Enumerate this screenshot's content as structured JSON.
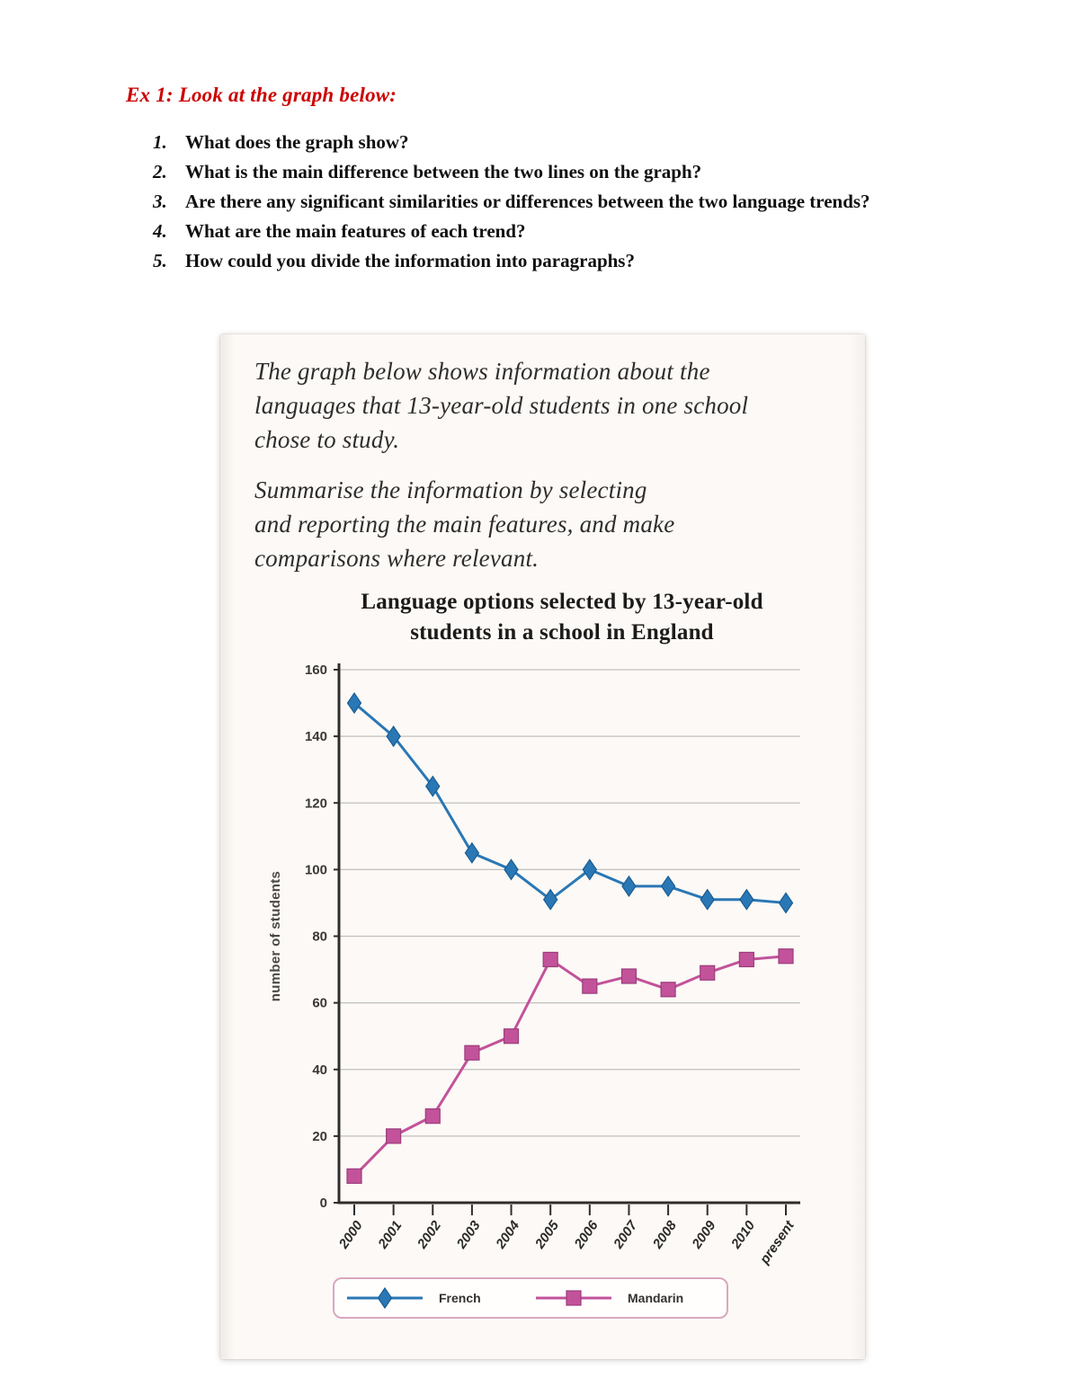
{
  "page": {
    "heading": "Ex 1: Look at the graph below:",
    "questions": [
      {
        "num": "1.",
        "text": "What does the graph show?"
      },
      {
        "num": "2.",
        "text": "What is the main difference between the two lines on the graph?"
      },
      {
        "num": "3.",
        "text": "Are there any significant similarities or differences between the two language trends?"
      },
      {
        "num": "4.",
        "text": "What are the main features of each trend?"
      },
      {
        "num": "5.",
        "text": "How could you divide the information into paragraphs?"
      }
    ]
  },
  "card": {
    "prompt1_lines": [
      "The graph below shows information about the",
      "languages that 13-year-old students in one school",
      "chose to study."
    ],
    "prompt2_lines": [
      "Summarise the information by selecting",
      "and reporting the main features, and make",
      "comparisons where relevant."
    ]
  },
  "chart_data": {
    "type": "line",
    "title": "Language options selected by 13-year-old students in a school in England",
    "xlabel": "",
    "ylabel": "number of students",
    "categories": [
      "2000",
      "2001",
      "2002",
      "2003",
      "2004",
      "2005",
      "2006",
      "2007",
      "2008",
      "2009",
      "2010",
      "present"
    ],
    "series": [
      {
        "name": "French",
        "marker": "diamond",
        "color": "#2a77b5",
        "edge": "#1a5d92",
        "values": [
          150,
          140,
          125,
          105,
          100,
          91,
          100,
          95,
          95,
          91,
          91,
          90
        ]
      },
      {
        "name": "Mandarin",
        "marker": "square",
        "color": "#c2539a",
        "edge": "#9c3d7a",
        "values": [
          8,
          20,
          26,
          45,
          50,
          73,
          65,
          68,
          64,
          69,
          73,
          74
        ]
      }
    ],
    "ylim": [
      0,
      160
    ],
    "ytick_step": 20,
    "grid": true,
    "legend_position": "bottom",
    "colors": {
      "grid": "#c1c0be",
      "axis": "#2f2d2b",
      "legend_border": "#d9a8c0"
    }
  }
}
